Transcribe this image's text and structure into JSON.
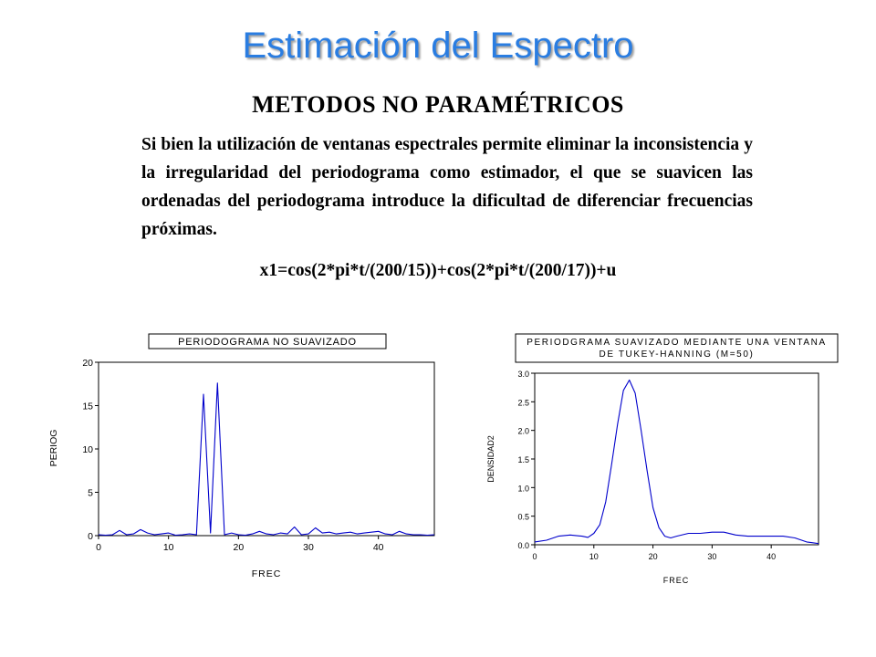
{
  "slide": {
    "title": "Estimación del Espectro",
    "subtitle": "METODOS NO PARAMÉTRICOS",
    "paragraph": "Si bien la utilización de ventanas espectrales permite eliminar la inconsistencia y la irregularidad del periodograma como estimador, el que se suavicen las ordenadas del periodograma introduce la dificultad de diferenciar frecuencias próximas.",
    "formula": "x1=cos(2*pi*t/(200/15))+cos(2*pi*t/(200/17))+u",
    "accent_color": "#2a7de1"
  },
  "chart_data": [
    {
      "type": "line",
      "title": "PERIODOGRAMA NO SUAVIZADO",
      "xlabel": "FREC",
      "ylabel": "PERIOG",
      "xlim": [
        0,
        48
      ],
      "ylim": [
        0,
        20
      ],
      "xticks": [
        "0",
        "10",
        "20",
        "30",
        "40"
      ],
      "yticks": [
        "0",
        "5",
        "10",
        "15",
        "20"
      ],
      "line_color": "#0000cc",
      "series": [
        {
          "x": [
            0,
            1,
            2,
            3,
            4,
            5,
            6,
            7,
            8,
            9,
            10,
            11,
            12,
            13,
            14,
            15,
            16,
            17,
            18,
            19,
            20,
            21,
            22,
            23,
            24,
            25,
            26,
            27,
            28,
            29,
            30,
            31,
            32,
            33,
            34,
            35,
            36,
            37,
            38,
            39,
            40,
            41,
            42,
            43,
            44,
            45,
            46,
            47,
            48
          ],
          "y": [
            0.1,
            0.05,
            0.1,
            0.6,
            0.1,
            0.2,
            0.7,
            0.3,
            0.1,
            0.2,
            0.3,
            0.05,
            0.1,
            0.2,
            0.1,
            16.3,
            0.3,
            17.6,
            0.1,
            0.3,
            0.1,
            0.05,
            0.2,
            0.5,
            0.2,
            0.1,
            0.3,
            0.2,
            1.0,
            0.1,
            0.2,
            0.9,
            0.3,
            0.4,
            0.2,
            0.3,
            0.4,
            0.2,
            0.3,
            0.4,
            0.5,
            0.2,
            0.1,
            0.5,
            0.2,
            0.1,
            0.1,
            0.05,
            0.1
          ]
        }
      ]
    },
    {
      "type": "line",
      "title": "PERIODGRAMA SUAVIZADO MEDIANTE UNA VENTANA DE TUKEY-HANNING (M=50)",
      "title_lines": [
        "PERIODGRAMA SUAVIZADO MEDIANTE UNA VENTANA",
        "DE TUKEY-HANNING (M=50)"
      ],
      "xlabel": "FREC",
      "ylabel": "DENSIDAD2",
      "xlim": [
        0,
        48
      ],
      "ylim": [
        0,
        3.0
      ],
      "xticks": [
        "0",
        "10",
        "20",
        "30",
        "40"
      ],
      "yticks": [
        "0.0",
        "0.5",
        "1.0",
        "1.5",
        "2.0",
        "2.5",
        "3.0"
      ],
      "line_color": "#0000cc",
      "series": [
        {
          "x": [
            0,
            2,
            4,
            6,
            8,
            9,
            10,
            11,
            12,
            13,
            14,
            15,
            16,
            17,
            18,
            19,
            20,
            21,
            22,
            23,
            24,
            26,
            28,
            30,
            32,
            34,
            36,
            38,
            40,
            42,
            44,
            46,
            48
          ],
          "y": [
            0.05,
            0.08,
            0.15,
            0.17,
            0.15,
            0.13,
            0.2,
            0.35,
            0.75,
            1.4,
            2.1,
            2.7,
            2.88,
            2.65,
            2.0,
            1.3,
            0.65,
            0.3,
            0.15,
            0.12,
            0.15,
            0.2,
            0.2,
            0.22,
            0.22,
            0.17,
            0.15,
            0.15,
            0.15,
            0.15,
            0.12,
            0.05,
            0.02
          ]
        }
      ]
    }
  ]
}
